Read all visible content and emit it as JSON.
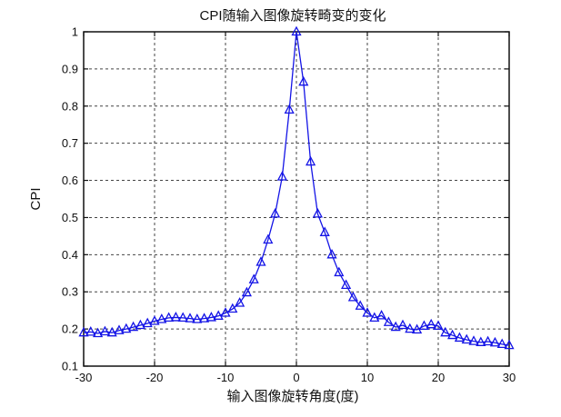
{
  "figure": {
    "title": "CPI随输入图像旋转畸变的变化",
    "xlabel": "输入图像旋转角度(度)",
    "ylabel": "CPI",
    "background": "#ffffff",
    "axes_color": "#111111",
    "grid_color": "#444444"
  },
  "chart_data": {
    "type": "line",
    "title": "CPI随输入图像旋转畸变的变化",
    "xlabel": "输入图像旋转角度(度)",
    "ylabel": "CPI",
    "xlim": [
      -30,
      30
    ],
    "ylim": [
      0.1,
      1.0
    ],
    "xticks": [
      -30,
      -20,
      -10,
      0,
      10,
      20,
      30
    ],
    "xtick_labels": [
      "-30",
      "-20",
      "-10",
      "0",
      "10",
      "20",
      "30"
    ],
    "yticks": [
      0.1,
      0.2,
      0.3,
      0.4,
      0.5,
      0.6,
      0.7,
      0.8,
      0.9,
      1.0
    ],
    "ytick_labels": [
      "0.1",
      "0.2",
      "0.3",
      "0.4",
      "0.5",
      "0.6",
      "0.7",
      "0.8",
      "0.9",
      "1"
    ],
    "grid": true,
    "grid_style": "dashed",
    "legend": null,
    "series": [
      {
        "name": "CPI",
        "color": "#1414e6",
        "marker": "triangle-up",
        "marker_filled": false,
        "x": [
          -30,
          -29,
          -28,
          -27,
          -26,
          -25,
          -24,
          -23,
          -22,
          -21,
          -20,
          -19,
          -18,
          -17,
          -16,
          -15,
          -14,
          -13,
          -12,
          -11,
          -10,
          -9,
          -8,
          -7,
          -6,
          -5,
          -4,
          -3,
          -2,
          -1,
          0,
          1,
          2,
          3,
          4,
          5,
          6,
          7,
          8,
          9,
          10,
          11,
          12,
          13,
          14,
          15,
          16,
          17,
          18,
          19,
          20,
          21,
          22,
          23,
          24,
          25,
          26,
          27,
          28,
          29,
          30
        ],
        "y": [
          0.19,
          0.192,
          0.188,
          0.193,
          0.19,
          0.196,
          0.2,
          0.205,
          0.21,
          0.215,
          0.221,
          0.226,
          0.23,
          0.231,
          0.23,
          0.228,
          0.226,
          0.228,
          0.231,
          0.235,
          0.243,
          0.254,
          0.27,
          0.298,
          0.333,
          0.38,
          0.44,
          0.51,
          0.61,
          0.79,
          1.0,
          0.865,
          0.65,
          0.51,
          0.46,
          0.4,
          0.352,
          0.318,
          0.285,
          0.262,
          0.243,
          0.23,
          0.236,
          0.218,
          0.205,
          0.21,
          0.2,
          0.198,
          0.208,
          0.212,
          0.208,
          0.19,
          0.183,
          0.176,
          0.171,
          0.167,
          0.164,
          0.166,
          0.163,
          0.159,
          0.156
        ]
      }
    ]
  }
}
